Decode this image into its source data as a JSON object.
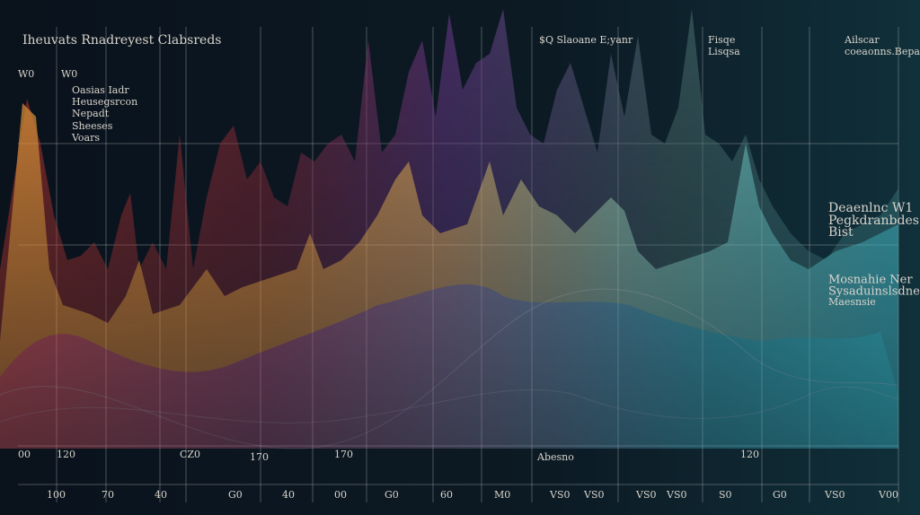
{
  "title": "Iheuvats Rnadreyest Clabsreds",
  "top_labels": [
    "$Q Slaoane E;yanr",
    "Fisqe",
    "Lisqsa",
    "Ailscar",
    "coeaonns.Bepary"
  ],
  "left_labels": [
    "W0",
    "W0",
    "Oasias Iadr",
    "Heusegsrcon",
    "Nepadt",
    "Sheeses",
    "Voars"
  ],
  "right_notes": [
    "Deaenlnc W1",
    "Pegkdranbdes",
    "Bist",
    "Mosnahie Ner",
    "Sysaduinslsdner",
    "Maesnsie"
  ],
  "mid_labels": [
    "00",
    "120",
    "CZ0",
    "170",
    "170",
    "Abesno",
    "120"
  ],
  "axis_labels": [
    "100",
    "70",
    "40",
    "G0",
    "40",
    "00",
    "G0",
    "60",
    "M0",
    "VS0",
    "VS0",
    "VS0",
    "VS0",
    "S0",
    "G0",
    "VS0",
    "V00"
  ]
}
